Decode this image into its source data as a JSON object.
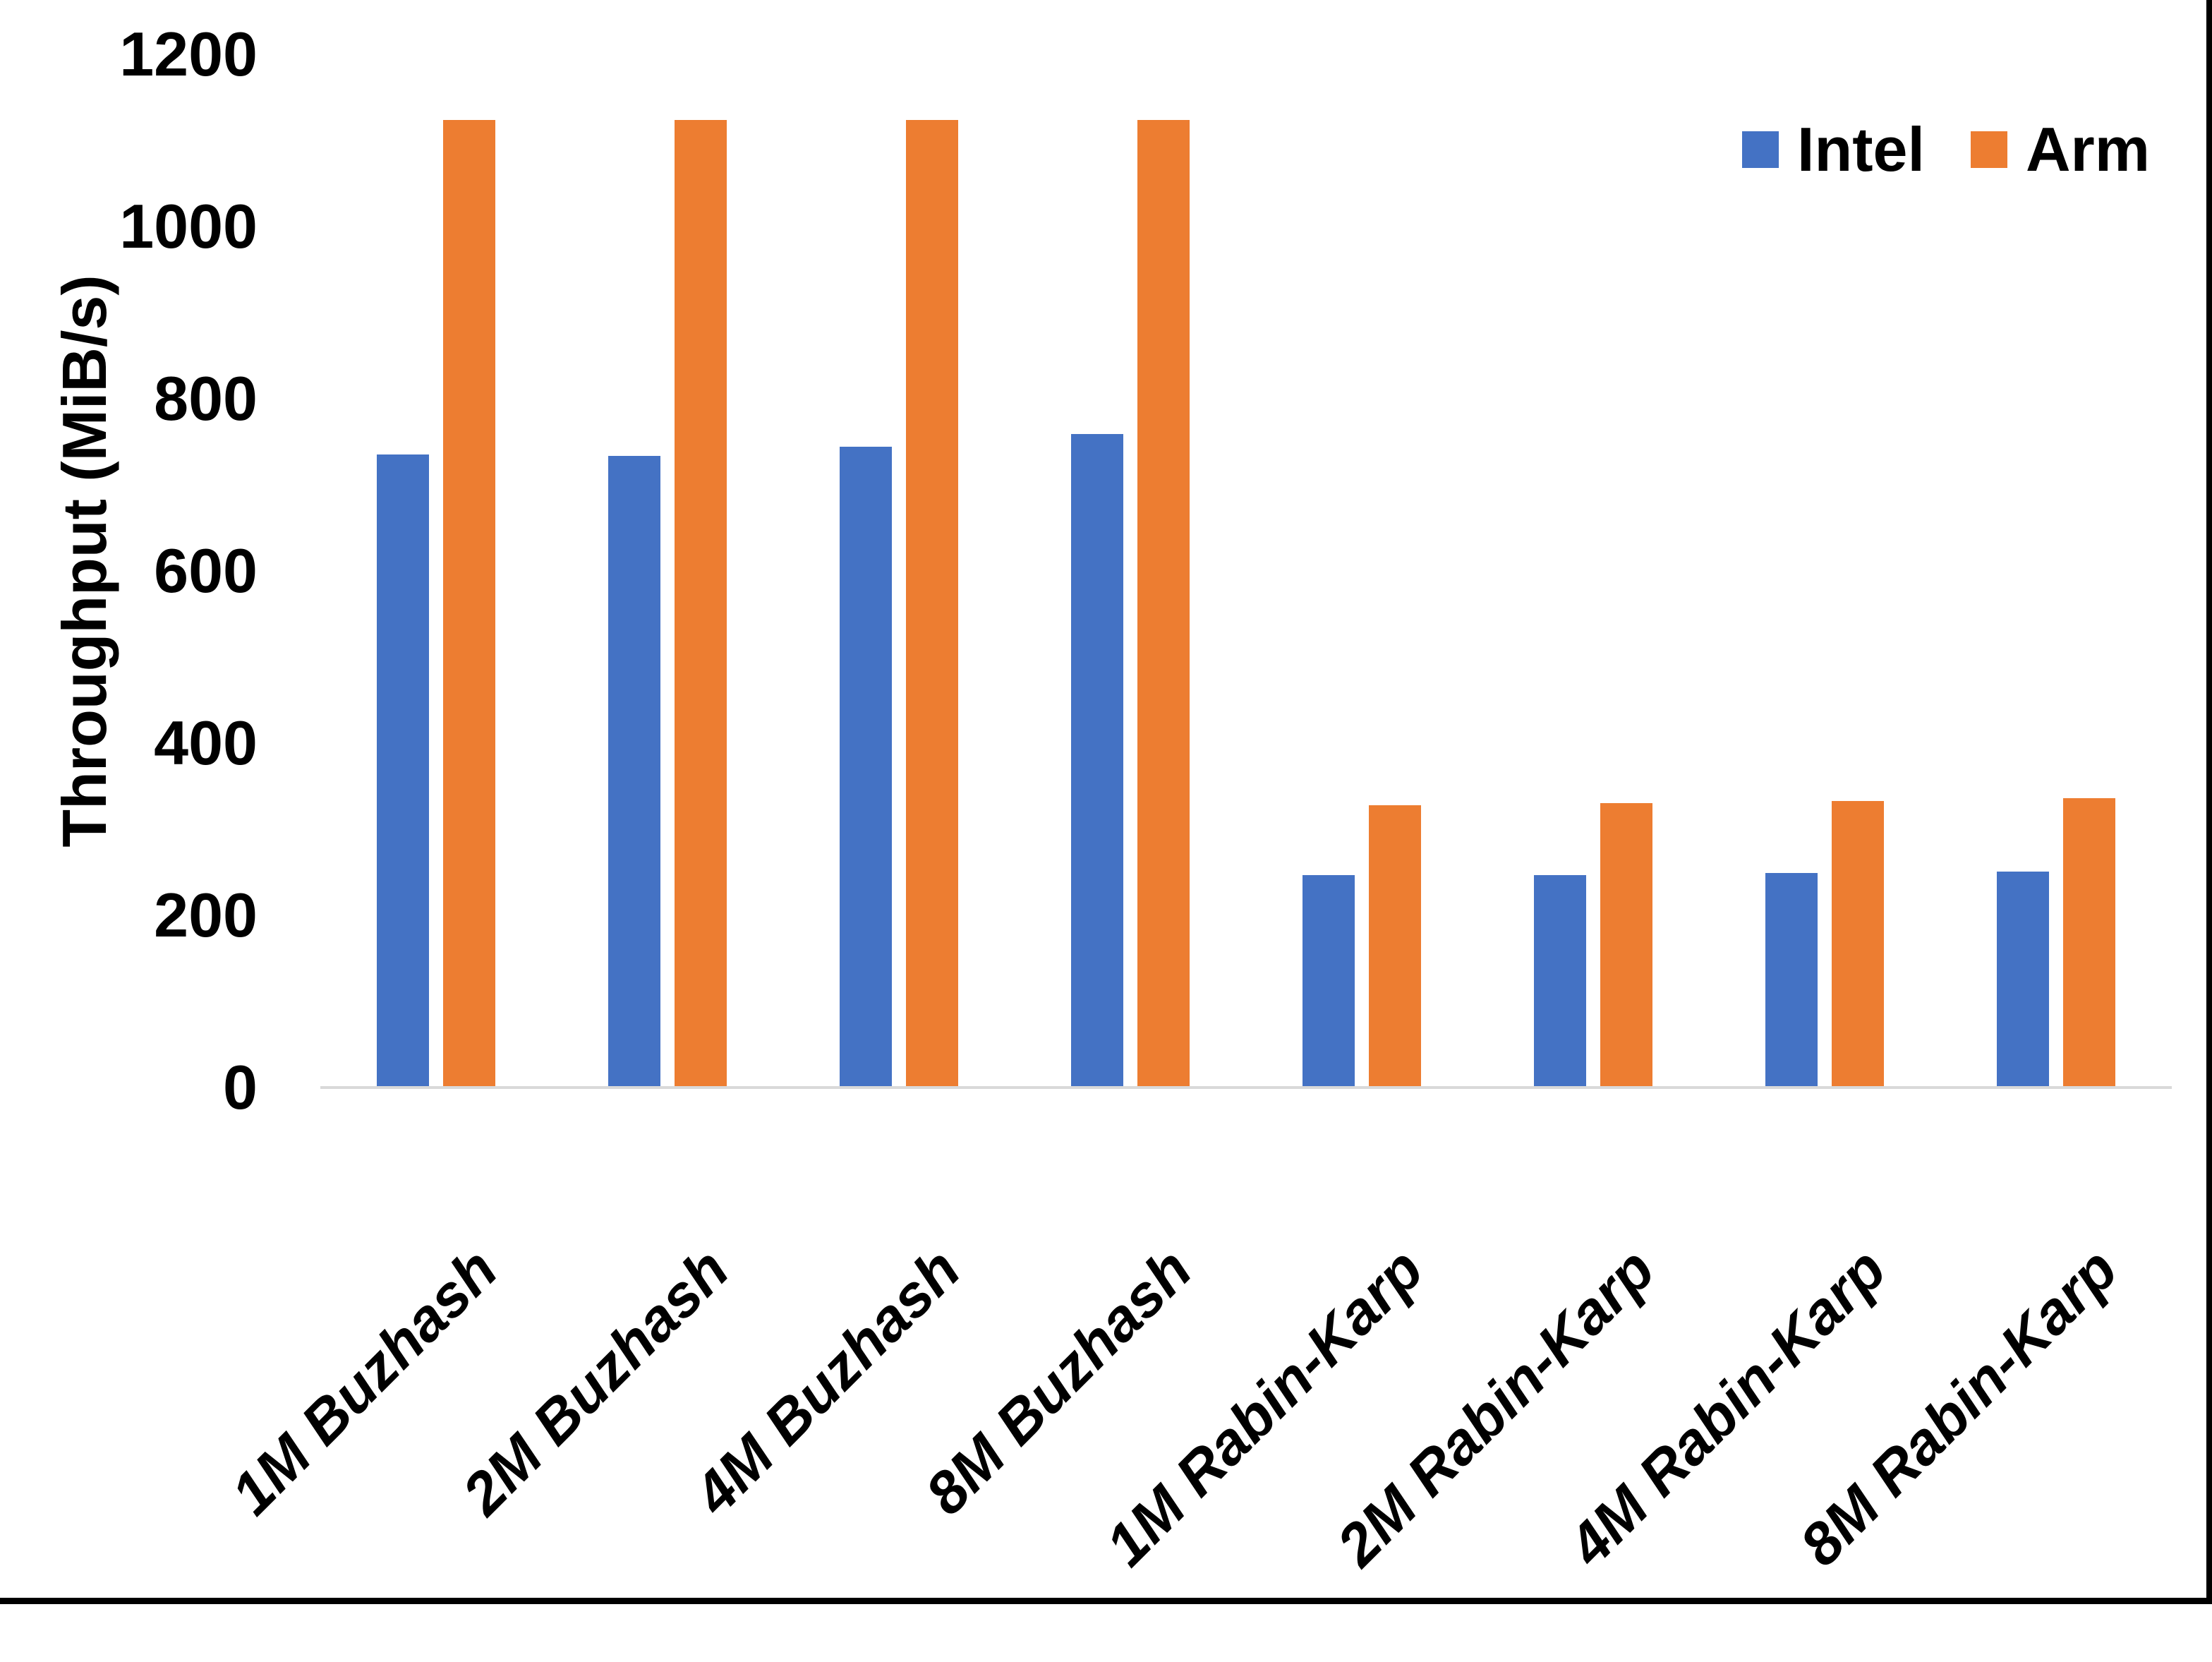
{
  "chart_data": {
    "type": "bar",
    "title": "",
    "xlabel": "",
    "ylabel": "Throughput (MiB/s)",
    "categories": [
      "1M Buzhash",
      "2M Buzhash",
      "4M Buzhash",
      "8M Buzhash",
      "1M Rabin-Karp",
      "2M Rabin-Karp",
      "4M Rabin-Karp",
      "8M Rabin-Karp"
    ],
    "series": [
      {
        "name": "Intel",
        "color": "#4472C4",
        "values": [
          735,
          734,
          744,
          759,
          247,
          247,
          249,
          251
        ]
      },
      {
        "name": "Arm",
        "color": "#ED7D31",
        "values": [
          1124,
          1124,
          1124,
          1124,
          328,
          330,
          333,
          336
        ]
      }
    ],
    "ylim": [
      0,
      1200
    ],
    "yticks": [
      0,
      200,
      400,
      600,
      800,
      1000,
      1200
    ],
    "grid": false,
    "legend_position": "top-right",
    "axis_line_color": "#D9D9D9",
    "page_frame_color": "#000000"
  }
}
